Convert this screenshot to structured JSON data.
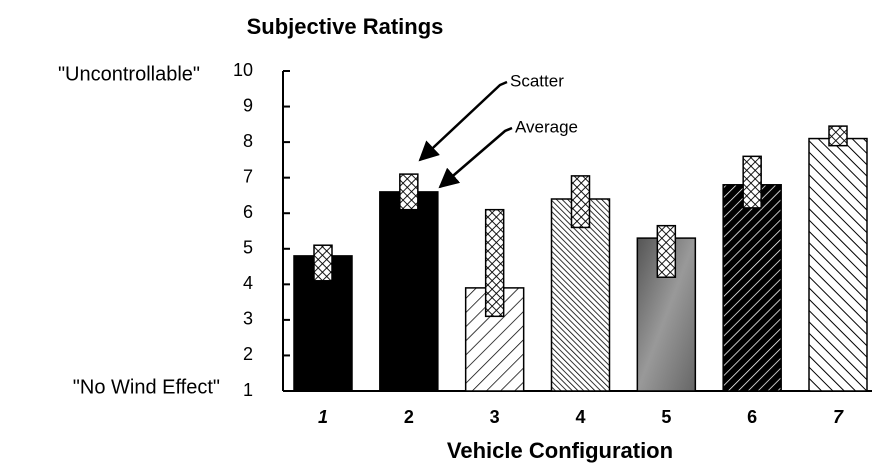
{
  "chart_data": {
    "type": "bar",
    "title": "Subjective Ratings",
    "x_label": "Vehicle Configuration",
    "categories": [
      "1",
      "2",
      "3",
      "4",
      "5",
      "6",
      "7"
    ],
    "series": [
      {
        "name": "Average",
        "values": [
          4.8,
          6.6,
          3.9,
          6.4,
          5.3,
          6.8,
          8.1
        ]
      }
    ],
    "scatter_low": [
      4.1,
      6.1,
      3.1,
      5.6,
      4.2,
      6.15,
      7.9
    ],
    "scatter_high": [
      5.1,
      7.1,
      6.1,
      7.05,
      5.65,
      7.6,
      8.45
    ],
    "ylim": [
      1,
      10
    ],
    "yticks": [
      1,
      2,
      3,
      4,
      5,
      6,
      7,
      8,
      9,
      10
    ],
    "y_top_label": "\"Uncontrollable\"",
    "y_bottom_label": "\"No Wind Effect\"",
    "annotations": [
      "Scatter",
      "Average"
    ]
  }
}
